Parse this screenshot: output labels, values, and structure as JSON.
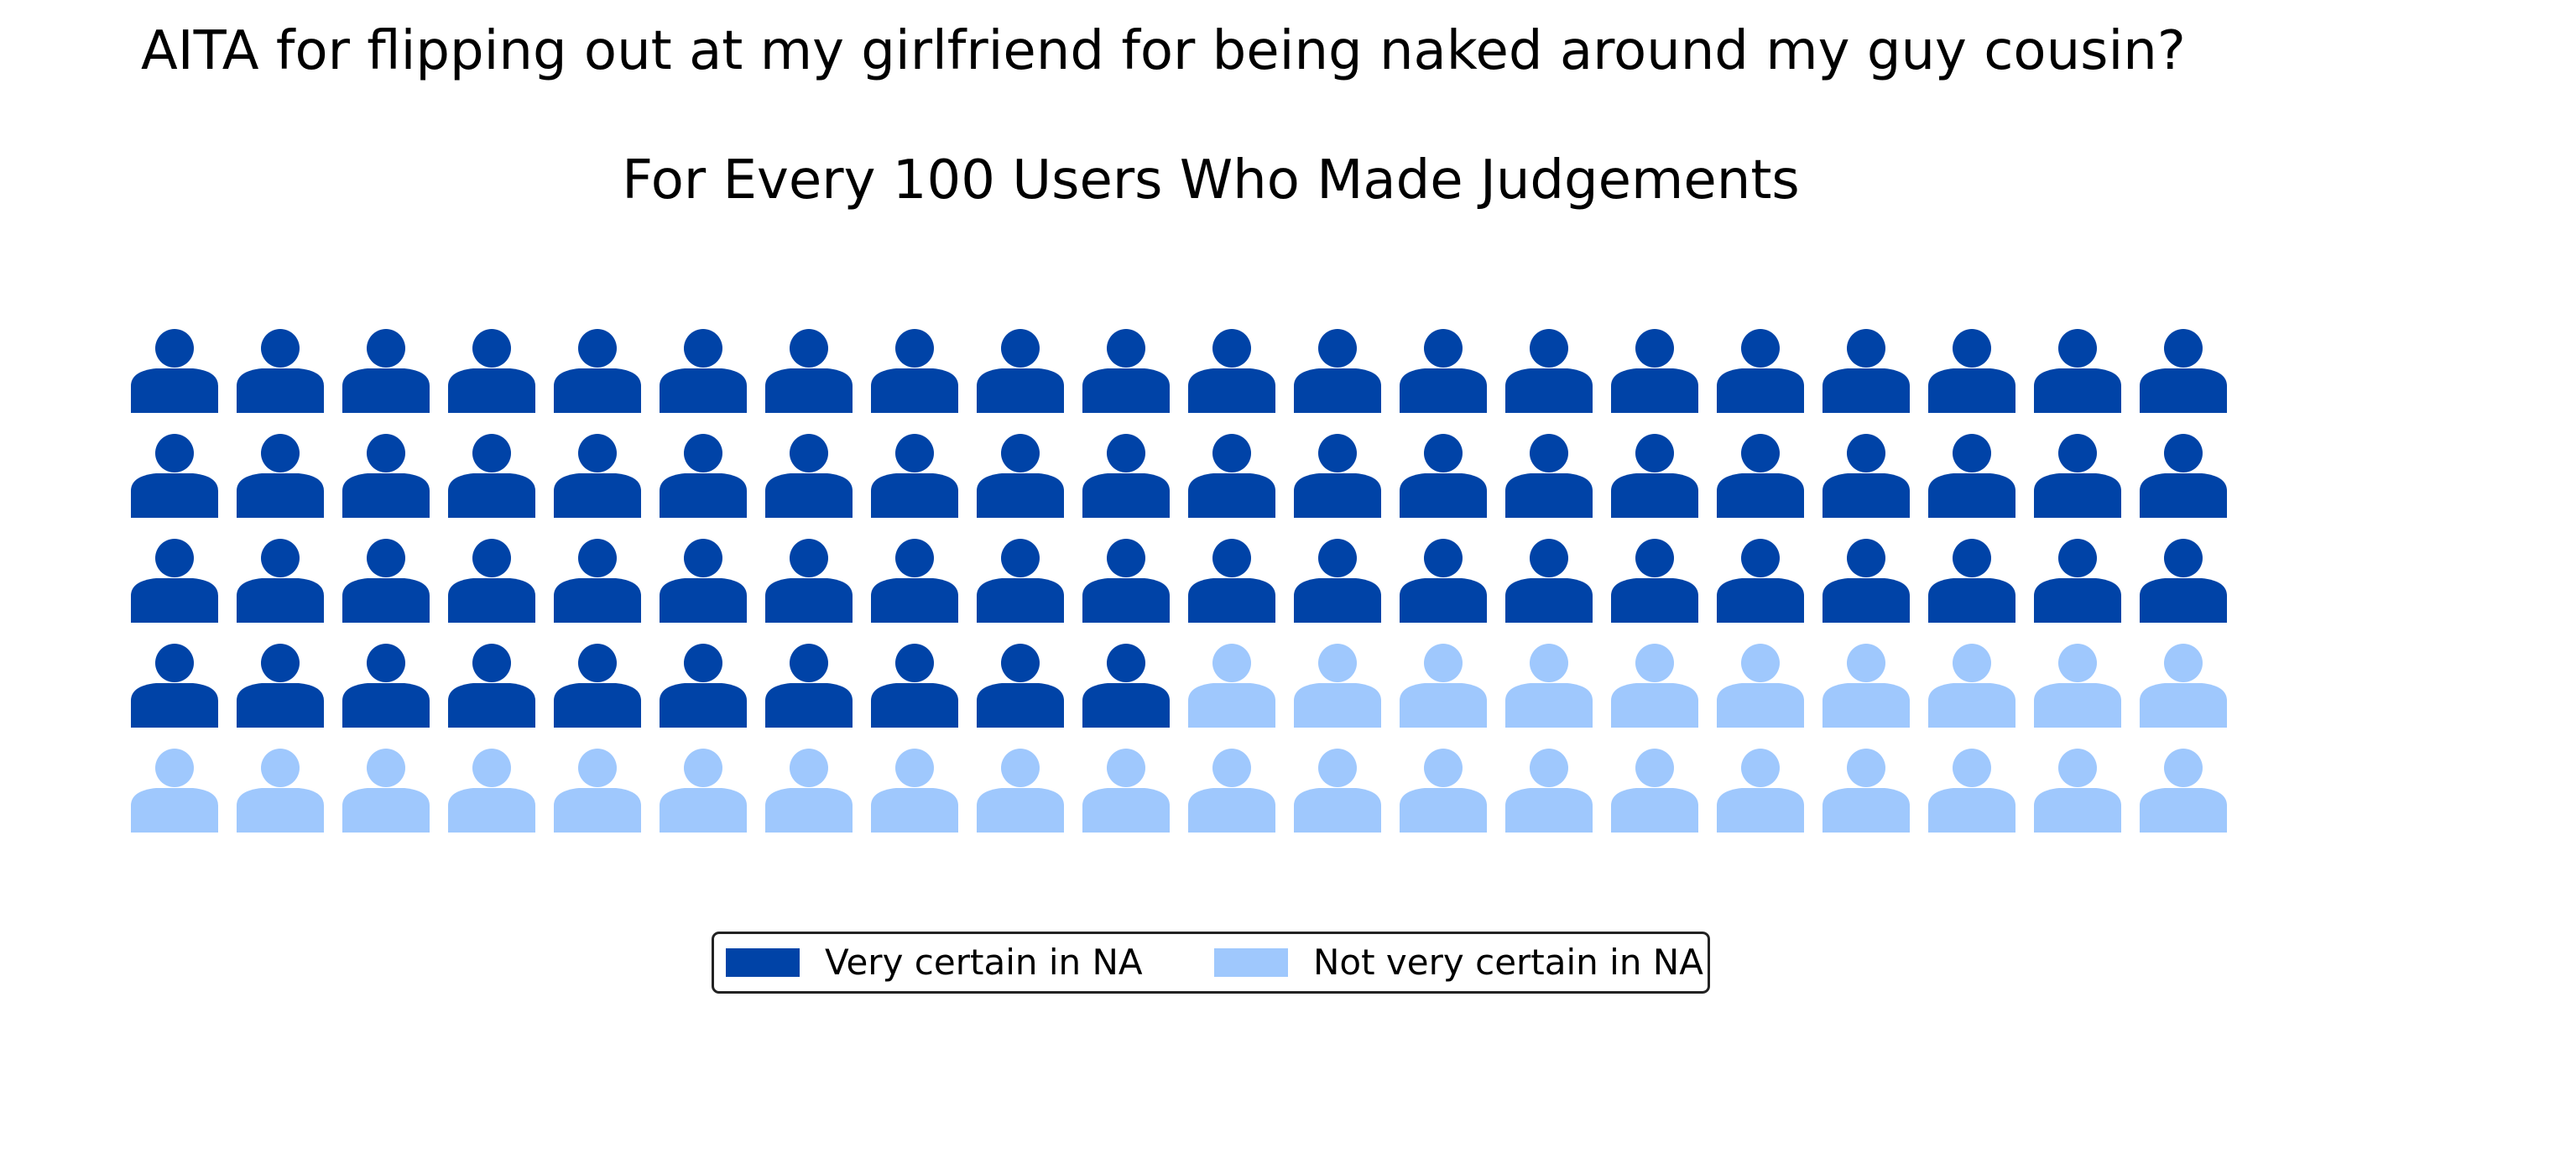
{
  "chart_data": {
    "type": "pictogram",
    "title": "AITA for flipping out at my girlfriend for being naked around my guy cousin?",
    "subtitle": "For Every 100 Users Who Made Judgements",
    "icon": "person-icon",
    "total": 100,
    "rows": 5,
    "columns": 20,
    "fill_order": "row-major",
    "series": [
      {
        "name": "Very certain in NA",
        "value": 70,
        "color": "#0043a7"
      },
      {
        "name": "Not very certain in NA",
        "value": 30,
        "color": "#9fc8fd"
      }
    ],
    "legend_position": "bottom-center"
  }
}
